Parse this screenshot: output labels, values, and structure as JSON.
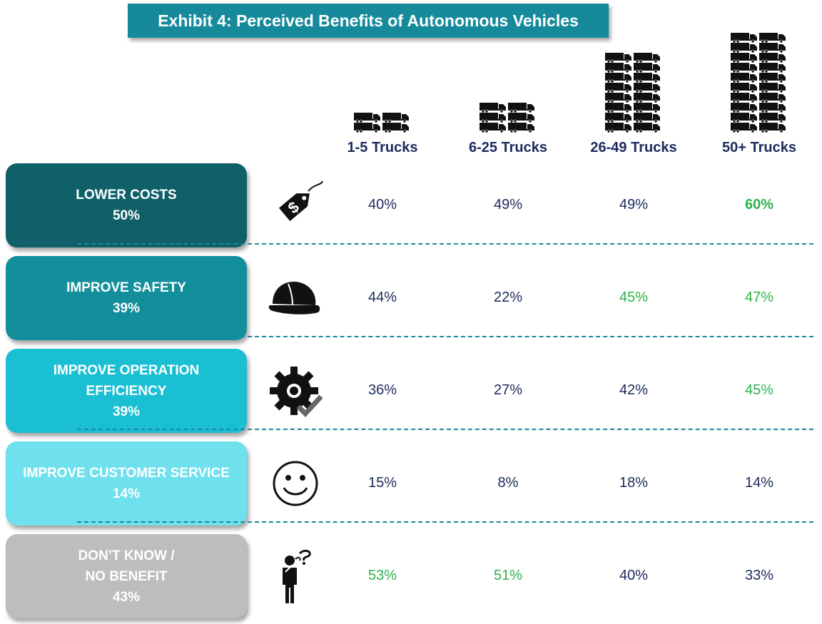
{
  "title": "Exhibit 4: Perceived Benefits of Autonomous Vehicles",
  "chart_data": {
    "type": "table",
    "title": "Exhibit 4: Perceived Benefits of Autonomous Vehicles",
    "columns": [
      {
        "label": "1-5 Trucks",
        "truck_icons": 4
      },
      {
        "label": "6-25 Trucks",
        "truck_icons": 6
      },
      {
        "label": "26-49 Trucks",
        "truck_icons": 16
      },
      {
        "label": "50+ Trucks",
        "truck_icons": 20
      }
    ],
    "rows": [
      {
        "label_lines": [
          "LOWER COSTS"
        ],
        "overall": "50%",
        "icon": "price-tag-icon",
        "color": "#0f6068",
        "values": [
          "40%",
          "49%",
          "49%",
          "60%"
        ],
        "highlight": [
          false,
          false,
          false,
          true
        ]
      },
      {
        "label_lines": [
          "IMPROVE SAFETY"
        ],
        "overall": "39%",
        "icon": "hard-hat-icon",
        "color": "#138f9c",
        "values": [
          "44%",
          "22%",
          "45%",
          "47%"
        ],
        "highlight": [
          false,
          false,
          true,
          true
        ]
      },
      {
        "label_lines": [
          "IMPROVE OPERATION",
          "EFFICIENCY"
        ],
        "overall": "39%",
        "icon": "gear-check-icon",
        "color": "#1bbfd3",
        "values": [
          "36%",
          "27%",
          "42%",
          "45%"
        ],
        "highlight": [
          false,
          false,
          false,
          true
        ]
      },
      {
        "label_lines": [
          "IMPROVE CUSTOMER SERVICE"
        ],
        "overall": "14%",
        "icon": "smiley-icon",
        "color": "#6fe0ee",
        "values": [
          "15%",
          "8%",
          "18%",
          "14%"
        ],
        "highlight": [
          false,
          false,
          false,
          false
        ]
      },
      {
        "label_lines": [
          "DON’T KNOW /",
          "NO BENEFIT"
        ],
        "overall": "43%",
        "icon": "confused-person-icon",
        "color": "#bdbdbd",
        "values": [
          "53%",
          "51%",
          "40%",
          "33%"
        ],
        "highlight": [
          true,
          true,
          false,
          false
        ]
      }
    ],
    "colors": {
      "title_bg": "#168a9b",
      "highlight": "#2db34a",
      "value_text": "#1d2a5c",
      "divider": "#168a9b"
    }
  }
}
